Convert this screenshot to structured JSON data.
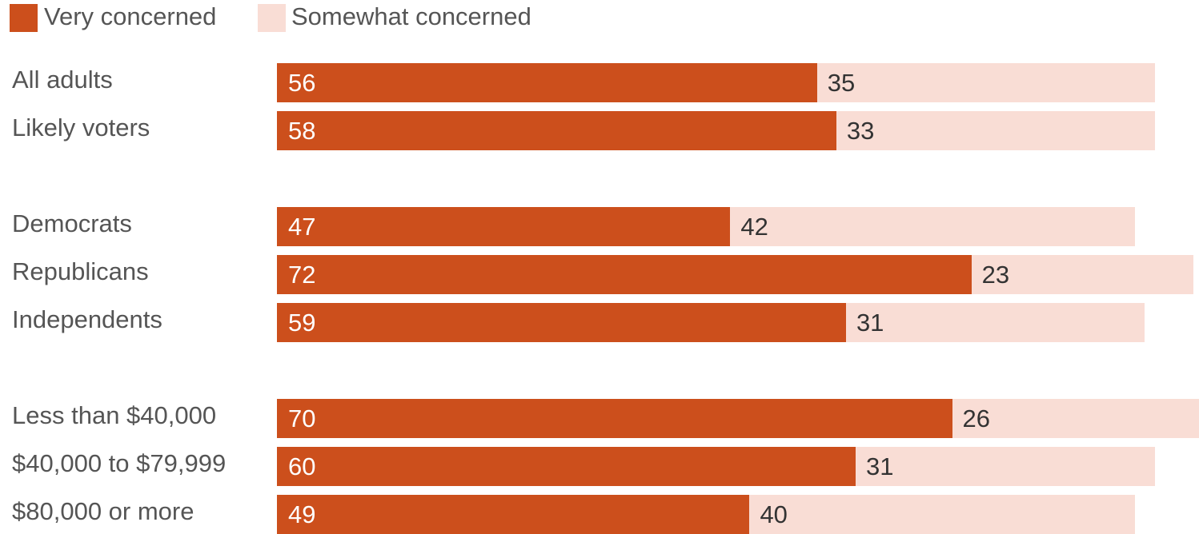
{
  "chart_data": {
    "type": "bar",
    "orientation": "horizontal",
    "stacked": true,
    "legend": "top-left",
    "grid": false,
    "xlim": [
      0,
      100
    ],
    "colors": {
      "very": "#cc4f1c",
      "somewhat": "#f9ddd5",
      "label_on_dark": "#ffffff",
      "label_on_light": "#333333"
    },
    "series": [
      {
        "name": "Very concerned",
        "key": "very"
      },
      {
        "name": "Somewhat concerned",
        "key": "somewhat"
      }
    ],
    "groups": [
      {
        "rows": [
          {
            "label": "All adults",
            "very": 56,
            "somewhat": 35
          },
          {
            "label": "Likely voters",
            "very": 58,
            "somewhat": 33
          }
        ]
      },
      {
        "rows": [
          {
            "label": "Democrats",
            "very": 47,
            "somewhat": 42
          },
          {
            "label": "Republicans",
            "very": 72,
            "somewhat": 23
          },
          {
            "label": "Independents",
            "very": 59,
            "somewhat": 31
          }
        ]
      },
      {
        "rows": [
          {
            "label": "Less than $40,000",
            "very": 70,
            "somewhat": 26
          },
          {
            "label": "$40,000 to $79,999",
            "very": 60,
            "somewhat": 31
          },
          {
            "label": "$80,000 or more",
            "very": 49,
            "somewhat": 40
          }
        ]
      }
    ]
  }
}
